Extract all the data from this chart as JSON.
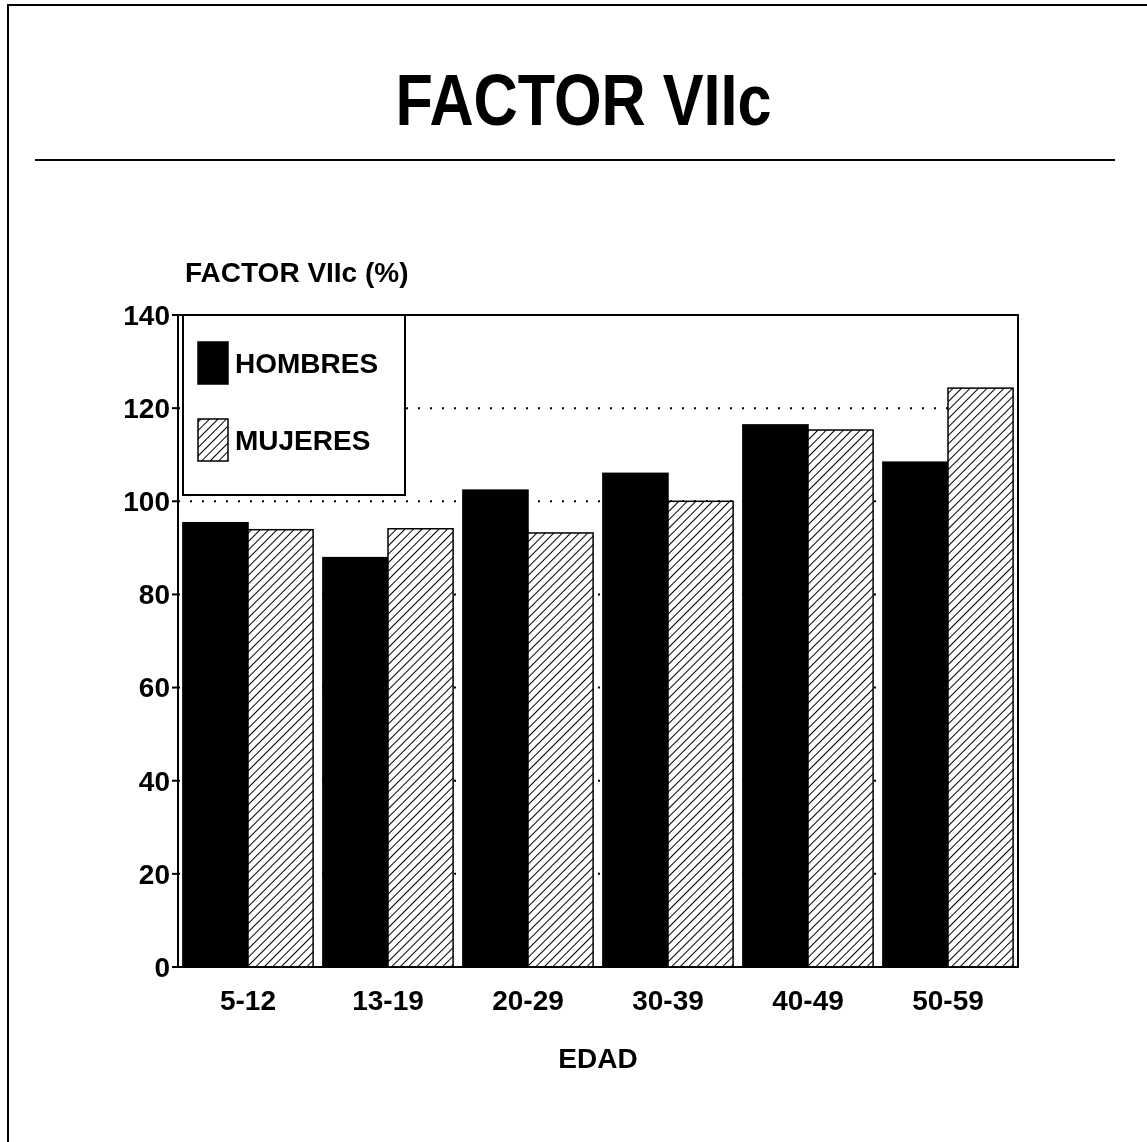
{
  "chart_data": {
    "type": "bar",
    "title": "FACTOR VIIc",
    "ylabel": "FACTOR VIIc (%)",
    "xlabel": "EDAD",
    "categories": [
      "5-12",
      "13-19",
      "20-29",
      "30-39",
      "40-49",
      "50-59"
    ],
    "series": [
      {
        "name": "HOMBRES",
        "color": "#000000",
        "values": [
          95.4,
          87.9,
          102.4,
          106,
          116.4,
          108.4
        ]
      },
      {
        "name": "MUJERES",
        "color": "#000000",
        "values": [
          93.9,
          94.1,
          93.2,
          100,
          115.3,
          124.3
        ]
      }
    ],
    "ylim": [
      0,
      140
    ],
    "yticks": [
      0,
      20,
      40,
      60,
      80,
      100,
      120,
      140
    ],
    "grid": "y",
    "legend": "top left"
  }
}
